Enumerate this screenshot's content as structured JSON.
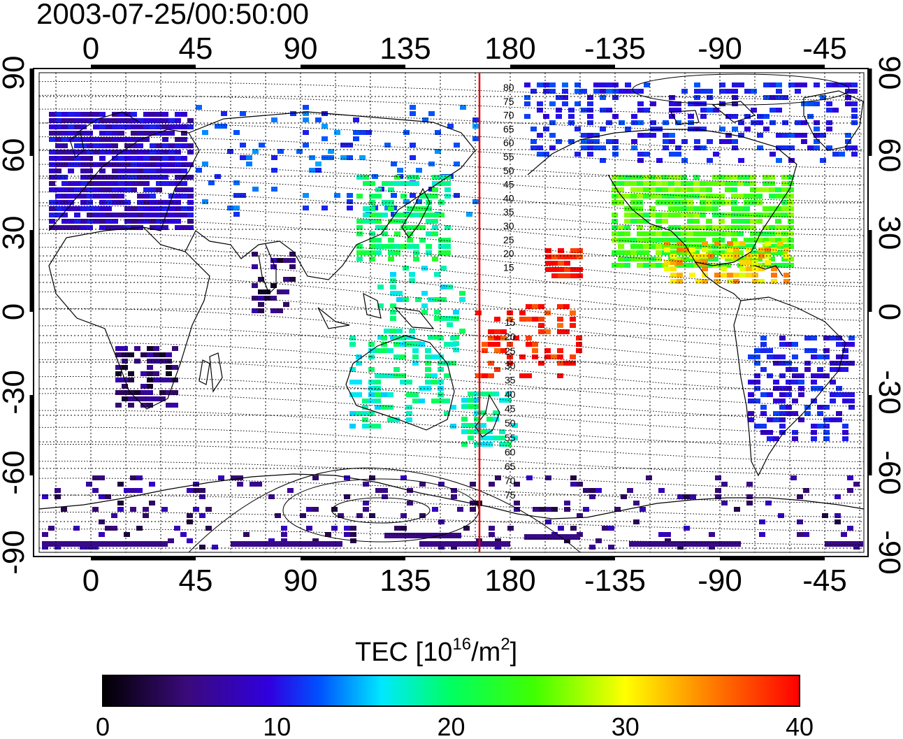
{
  "title": "2003-07-25/00:50:00",
  "map": {
    "lon_ticks": [
      "0",
      "45",
      "90",
      "135",
      "180",
      "-135",
      "-90",
      "-45"
    ],
    "lat_ticks_left": [
      "90",
      "60",
      "30",
      "0",
      "-30",
      "-60",
      "-90"
    ],
    "lat_ticks_right": [
      "90",
      "60",
      "30",
      "0",
      "-30",
      "-60",
      "-90"
    ],
    "terminator_labels_north": [
      "80",
      "75",
      "70",
      "65",
      "60",
      "55",
      "50",
      "45",
      "40",
      "35",
      "30",
      "25",
      "20",
      "15"
    ],
    "terminator_labels_south": [
      "15",
      "20",
      "25",
      "30",
      "35",
      "40",
      "45",
      "50",
      "55",
      "60",
      "65",
      "70",
      "75"
    ],
    "reference_line_color": "#e00000"
  },
  "colorbar": {
    "label_main": "TEC  [10",
    "label_exp1": "16",
    "label_mid": "/m",
    "label_exp2": "2",
    "label_end": "]",
    "ticks": [
      "0",
      "10",
      "20",
      "30",
      "40"
    ],
    "range": [
      0,
      40
    ],
    "colormap": [
      "#000000",
      "#3a0a7a",
      "#3000e0",
      "#0050ff",
      "#00e8ff",
      "#00ff60",
      "#40ff00",
      "#ffff00",
      "#ff8000",
      "#ff0000"
    ]
  },
  "tec_regions": [
    {
      "region": "europe",
      "tec": 8
    },
    {
      "region": "russia-asia",
      "tec": 13
    },
    {
      "region": "east-asia",
      "tec": 22
    },
    {
      "region": "japan",
      "tec": 20
    },
    {
      "region": "north-america",
      "tec": 26
    },
    {
      "region": "gulf-mexico",
      "tec": 33
    },
    {
      "region": "hawaii",
      "tec": 40
    },
    {
      "region": "south-pacific",
      "tec": 39
    },
    {
      "region": "australia",
      "tec": 20
    },
    {
      "region": "new-zealand",
      "tec": 20
    },
    {
      "region": "south-america",
      "tec": 10
    },
    {
      "region": "south-africa",
      "tec": 4
    },
    {
      "region": "antarctica",
      "tec": 5
    },
    {
      "region": "arctic-canada",
      "tec": 11
    },
    {
      "region": "india",
      "tec": 4
    }
  ]
}
